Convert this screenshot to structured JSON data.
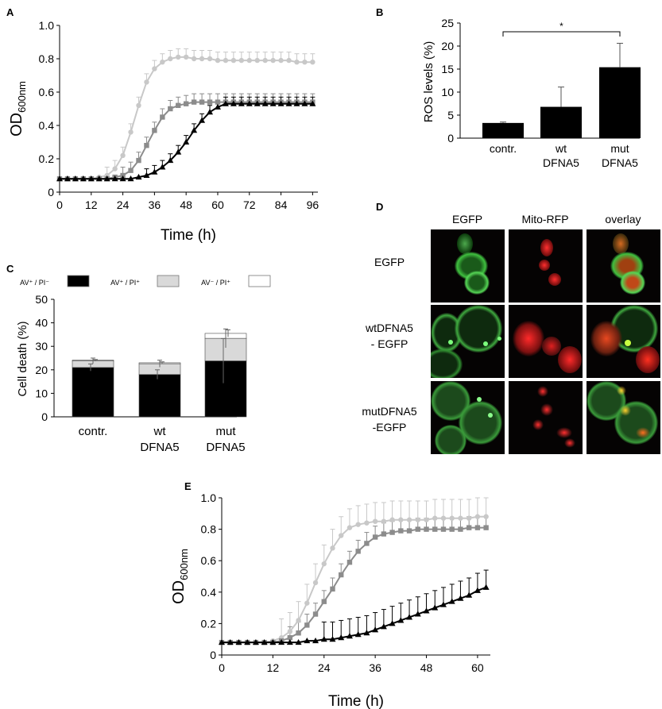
{
  "panels": {
    "A": "A",
    "B": "B",
    "C": "C",
    "D": "D",
    "E": "E"
  },
  "chart_data": [
    {
      "panel": "A",
      "type": "line",
      "xlabel": "Time (h)",
      "ylabel": "OD",
      "ylabel_sub": "600nm",
      "xlim": [
        0,
        98
      ],
      "ylim": [
        0,
        1.0
      ],
      "xticks": [
        0,
        12,
        24,
        36,
        48,
        60,
        72,
        84,
        96
      ],
      "yticks": [
        "0",
        "0.2",
        "0.4",
        "0.6",
        "0.8",
        "1.0"
      ],
      "x": [
        0,
        3,
        6,
        9,
        12,
        15,
        18,
        21,
        24,
        27,
        30,
        33,
        36,
        39,
        42,
        45,
        48,
        51,
        54,
        57,
        60,
        63,
        66,
        69,
        72,
        75,
        78,
        81,
        84,
        87,
        90,
        93,
        96
      ],
      "series": [
        {
          "color": "#c8c8c8",
          "marker": "circle",
          "values": [
            0.08,
            0.08,
            0.08,
            0.08,
            0.08,
            0.09,
            0.1,
            0.14,
            0.22,
            0.36,
            0.52,
            0.66,
            0.74,
            0.78,
            0.8,
            0.81,
            0.81,
            0.8,
            0.8,
            0.8,
            0.79,
            0.79,
            0.79,
            0.79,
            0.79,
            0.79,
            0.79,
            0.79,
            0.79,
            0.79,
            0.78,
            0.78,
            0.78
          ],
          "err": 0.05
        },
        {
          "color": "#8c8c8c",
          "marker": "square",
          "values": [
            0.08,
            0.08,
            0.08,
            0.08,
            0.08,
            0.08,
            0.08,
            0.09,
            0.1,
            0.13,
            0.19,
            0.28,
            0.37,
            0.45,
            0.5,
            0.52,
            0.53,
            0.54,
            0.54,
            0.54,
            0.54,
            0.54,
            0.54,
            0.54,
            0.54,
            0.54,
            0.54,
            0.54,
            0.54,
            0.54,
            0.54,
            0.54,
            0.54
          ],
          "err": 0.05
        },
        {
          "color": "#000000",
          "marker": "triangle",
          "values": [
            0.08,
            0.08,
            0.08,
            0.08,
            0.08,
            0.08,
            0.08,
            0.08,
            0.08,
            0.08,
            0.09,
            0.1,
            0.12,
            0.15,
            0.19,
            0.24,
            0.3,
            0.37,
            0.43,
            0.48,
            0.51,
            0.53,
            0.53,
            0.53,
            0.53,
            0.53,
            0.53,
            0.53,
            0.53,
            0.53,
            0.53,
            0.53,
            0.53
          ],
          "err": 0.04
        }
      ]
    },
    {
      "panel": "B",
      "type": "bar",
      "ylabel": "ROS levels (%)",
      "ylim": [
        0,
        25
      ],
      "yticks": [
        "0",
        "5",
        "10",
        "15",
        "20",
        "25"
      ],
      "categories": [
        [
          "contr."
        ],
        [
          "wt",
          "DFNA5"
        ],
        [
          "mut",
          "DFNA5"
        ]
      ],
      "values": [
        3.3,
        6.8,
        15.4
      ],
      "errors": [
        0.2,
        4.3,
        5.2
      ],
      "significance": {
        "from": 0,
        "to": 2,
        "label": "*"
      }
    },
    {
      "panel": "C",
      "type": "bar",
      "stacked": true,
      "ylabel": "Cell death (%)",
      "ylim": [
        0,
        50
      ],
      "yticks": [
        "0",
        "10",
        "20",
        "30",
        "40",
        "50"
      ],
      "categories": [
        [
          "contr."
        ],
        [
          "wt",
          "DFNA5"
        ],
        [
          "mut",
          "DFNA5"
        ]
      ],
      "legend": [
        "AV⁺ / PI⁻",
        "AV⁺ / PI⁺",
        "AV⁻ / PI⁺"
      ],
      "series": [
        {
          "color": "#000000",
          "values": [
            21,
            18,
            23.8
          ],
          "errors": [
            1.5,
            2.0,
            9.5
          ]
        },
        {
          "color": "#d9d9d9",
          "values": [
            2.8,
            4.6,
            9.6
          ],
          "errors": [
            1.2,
            1.5,
            4.0
          ]
        },
        {
          "color": "#ffffff",
          "values": [
            0.3,
            0.4,
            2.1
          ],
          "errors": [
            0.3,
            0.4,
            1.5
          ]
        }
      ]
    },
    {
      "panel": "E",
      "type": "line",
      "xlabel": "Time (h)",
      "ylabel": "OD",
      "ylabel_sub": "600nm",
      "xlim": [
        0,
        63
      ],
      "ylim": [
        0,
        1.0
      ],
      "xticks": [
        0,
        12,
        24,
        36,
        48,
        60
      ],
      "yticks": [
        "0",
        "0.2",
        "0.4",
        "0.6",
        "0.8",
        "1.0"
      ],
      "x": [
        0,
        2,
        4,
        6,
        8,
        10,
        12,
        14,
        16,
        18,
        20,
        22,
        24,
        26,
        28,
        30,
        32,
        34,
        36,
        38,
        40,
        42,
        44,
        46,
        48,
        50,
        52,
        54,
        56,
        58,
        60,
        62
      ],
      "series": [
        {
          "color": "#c8c8c8",
          "marker": "circle",
          "values": [
            0.08,
            0.08,
            0.08,
            0.08,
            0.08,
            0.08,
            0.09,
            0.11,
            0.15,
            0.22,
            0.33,
            0.46,
            0.58,
            0.68,
            0.76,
            0.81,
            0.83,
            0.84,
            0.85,
            0.85,
            0.86,
            0.86,
            0.86,
            0.86,
            0.86,
            0.87,
            0.87,
            0.87,
            0.87,
            0.87,
            0.88,
            0.88
          ],
          "err": 0.12
        },
        {
          "color": "#8c8c8c",
          "marker": "square",
          "values": [
            0.08,
            0.08,
            0.08,
            0.08,
            0.08,
            0.08,
            0.08,
            0.09,
            0.11,
            0.14,
            0.19,
            0.26,
            0.34,
            0.42,
            0.51,
            0.59,
            0.66,
            0.71,
            0.75,
            0.77,
            0.78,
            0.79,
            0.79,
            0.8,
            0.8,
            0.8,
            0.8,
            0.8,
            0.8,
            0.81,
            0.81,
            0.81
          ],
          "err": 0.07
        },
        {
          "color": "#000000",
          "marker": "triangle",
          "values": [
            0.08,
            0.08,
            0.08,
            0.08,
            0.08,
            0.08,
            0.08,
            0.08,
            0.08,
            0.08,
            0.09,
            0.09,
            0.1,
            0.1,
            0.11,
            0.12,
            0.13,
            0.14,
            0.16,
            0.18,
            0.2,
            0.22,
            0.24,
            0.26,
            0.28,
            0.3,
            0.32,
            0.34,
            0.36,
            0.38,
            0.41,
            0.43
          ],
          "err": 0.11
        }
      ]
    }
  ],
  "microscopy": {
    "columns": [
      "EGFP",
      "Mito-RFP",
      "overlay"
    ],
    "rows": [
      {
        "label": [
          "EGFP"
        ]
      },
      {
        "label": [
          "wtDFNA5",
          "- EGFP"
        ]
      },
      {
        "label": [
          "mutDFNA5",
          "-EGFP"
        ]
      }
    ]
  }
}
